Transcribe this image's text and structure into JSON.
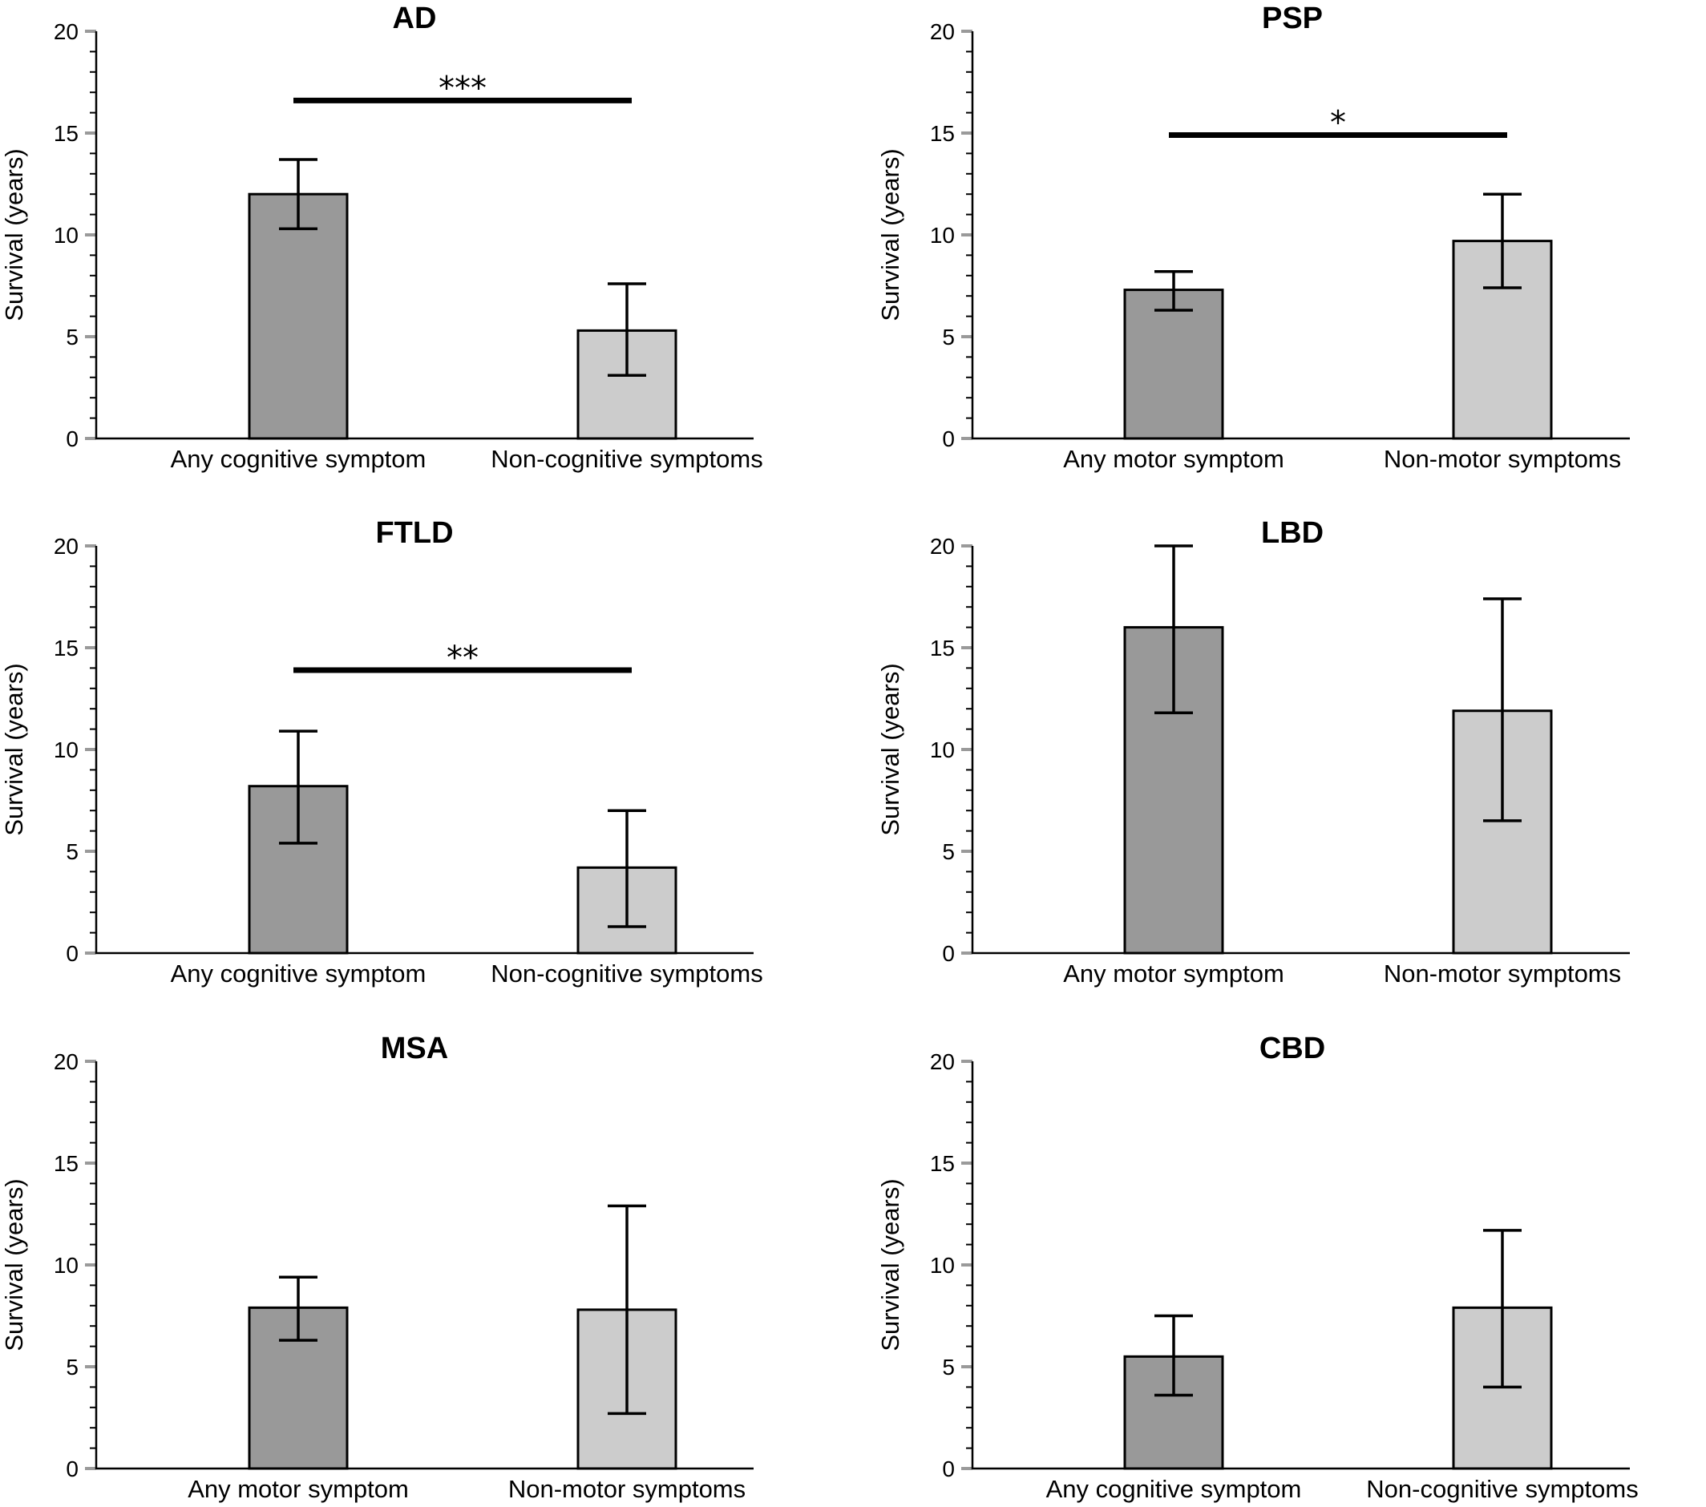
{
  "chart_data": [
    {
      "type": "bar",
      "title": "AD",
      "ylabel": "Survival (years)",
      "ylim": [
        0,
        20
      ],
      "yticks": [
        0,
        5,
        10,
        15,
        20
      ],
      "categories": [
        "Any cognitive symptom",
        "Non-cognitive symptoms"
      ],
      "values": [
        12.0,
        5.3
      ],
      "error_low": [
        10.3,
        3.1
      ],
      "error_high": [
        13.7,
        7.6
      ],
      "bar_colors": [
        "#999999",
        "#cccccc"
      ],
      "significance": {
        "label": "***",
        "y": 16.6
      }
    },
    {
      "type": "bar",
      "title": "PSP",
      "ylabel": "Survival (years)",
      "ylim": [
        0,
        20
      ],
      "yticks": [
        0,
        5,
        10,
        15,
        20
      ],
      "categories": [
        "Any motor symptom",
        "Non-motor symptoms"
      ],
      "values": [
        7.3,
        9.7
      ],
      "error_low": [
        6.3,
        7.4
      ],
      "error_high": [
        8.2,
        12.0
      ],
      "bar_colors": [
        "#999999",
        "#cccccc"
      ],
      "significance": {
        "label": "*",
        "y": 14.9
      }
    },
    {
      "type": "bar",
      "title": "FTLD",
      "ylabel": "Survival (years)",
      "ylim": [
        0,
        20
      ],
      "yticks": [
        0,
        5,
        10,
        15,
        20
      ],
      "categories": [
        "Any cognitive symptom",
        "Non-cognitive symptoms"
      ],
      "values": [
        8.2,
        4.2
      ],
      "error_low": [
        5.4,
        1.3
      ],
      "error_high": [
        10.9,
        7.0
      ],
      "bar_colors": [
        "#999999",
        "#cccccc"
      ],
      "significance": {
        "label": "**",
        "y": 13.9
      }
    },
    {
      "type": "bar",
      "title": "LBD",
      "ylabel": "Survival (years)",
      "ylim": [
        0,
        20
      ],
      "yticks": [
        0,
        5,
        10,
        15,
        20
      ],
      "categories": [
        "Any motor symptom",
        "Non-motor symptoms"
      ],
      "values": [
        16.0,
        11.9
      ],
      "error_low": [
        11.8,
        6.5
      ],
      "error_high": [
        20.0,
        17.4
      ],
      "bar_colors": [
        "#999999",
        "#cccccc"
      ],
      "significance": null
    },
    {
      "type": "bar",
      "title": "MSA",
      "ylabel": "Survival (years)",
      "ylim": [
        0,
        20
      ],
      "yticks": [
        0,
        5,
        10,
        15,
        20
      ],
      "categories": [
        "Any motor symptom",
        "Non-motor symptoms"
      ],
      "values": [
        7.9,
        7.8
      ],
      "error_low": [
        6.3,
        2.7
      ],
      "error_high": [
        9.4,
        12.9
      ],
      "bar_colors": [
        "#999999",
        "#cccccc"
      ],
      "significance": null
    },
    {
      "type": "bar",
      "title": "CBD",
      "ylabel": "Survival (years)",
      "ylim": [
        0,
        20
      ],
      "yticks": [
        0,
        5,
        10,
        15,
        20
      ],
      "categories": [
        "Any cognitive symptom",
        "Non-cognitive symptoms"
      ],
      "values": [
        5.5,
        7.9
      ],
      "error_low": [
        3.6,
        4.0
      ],
      "error_high": [
        7.5,
        11.7
      ],
      "bar_colors": [
        "#999999",
        "#cccccc"
      ],
      "significance": null
    }
  ]
}
